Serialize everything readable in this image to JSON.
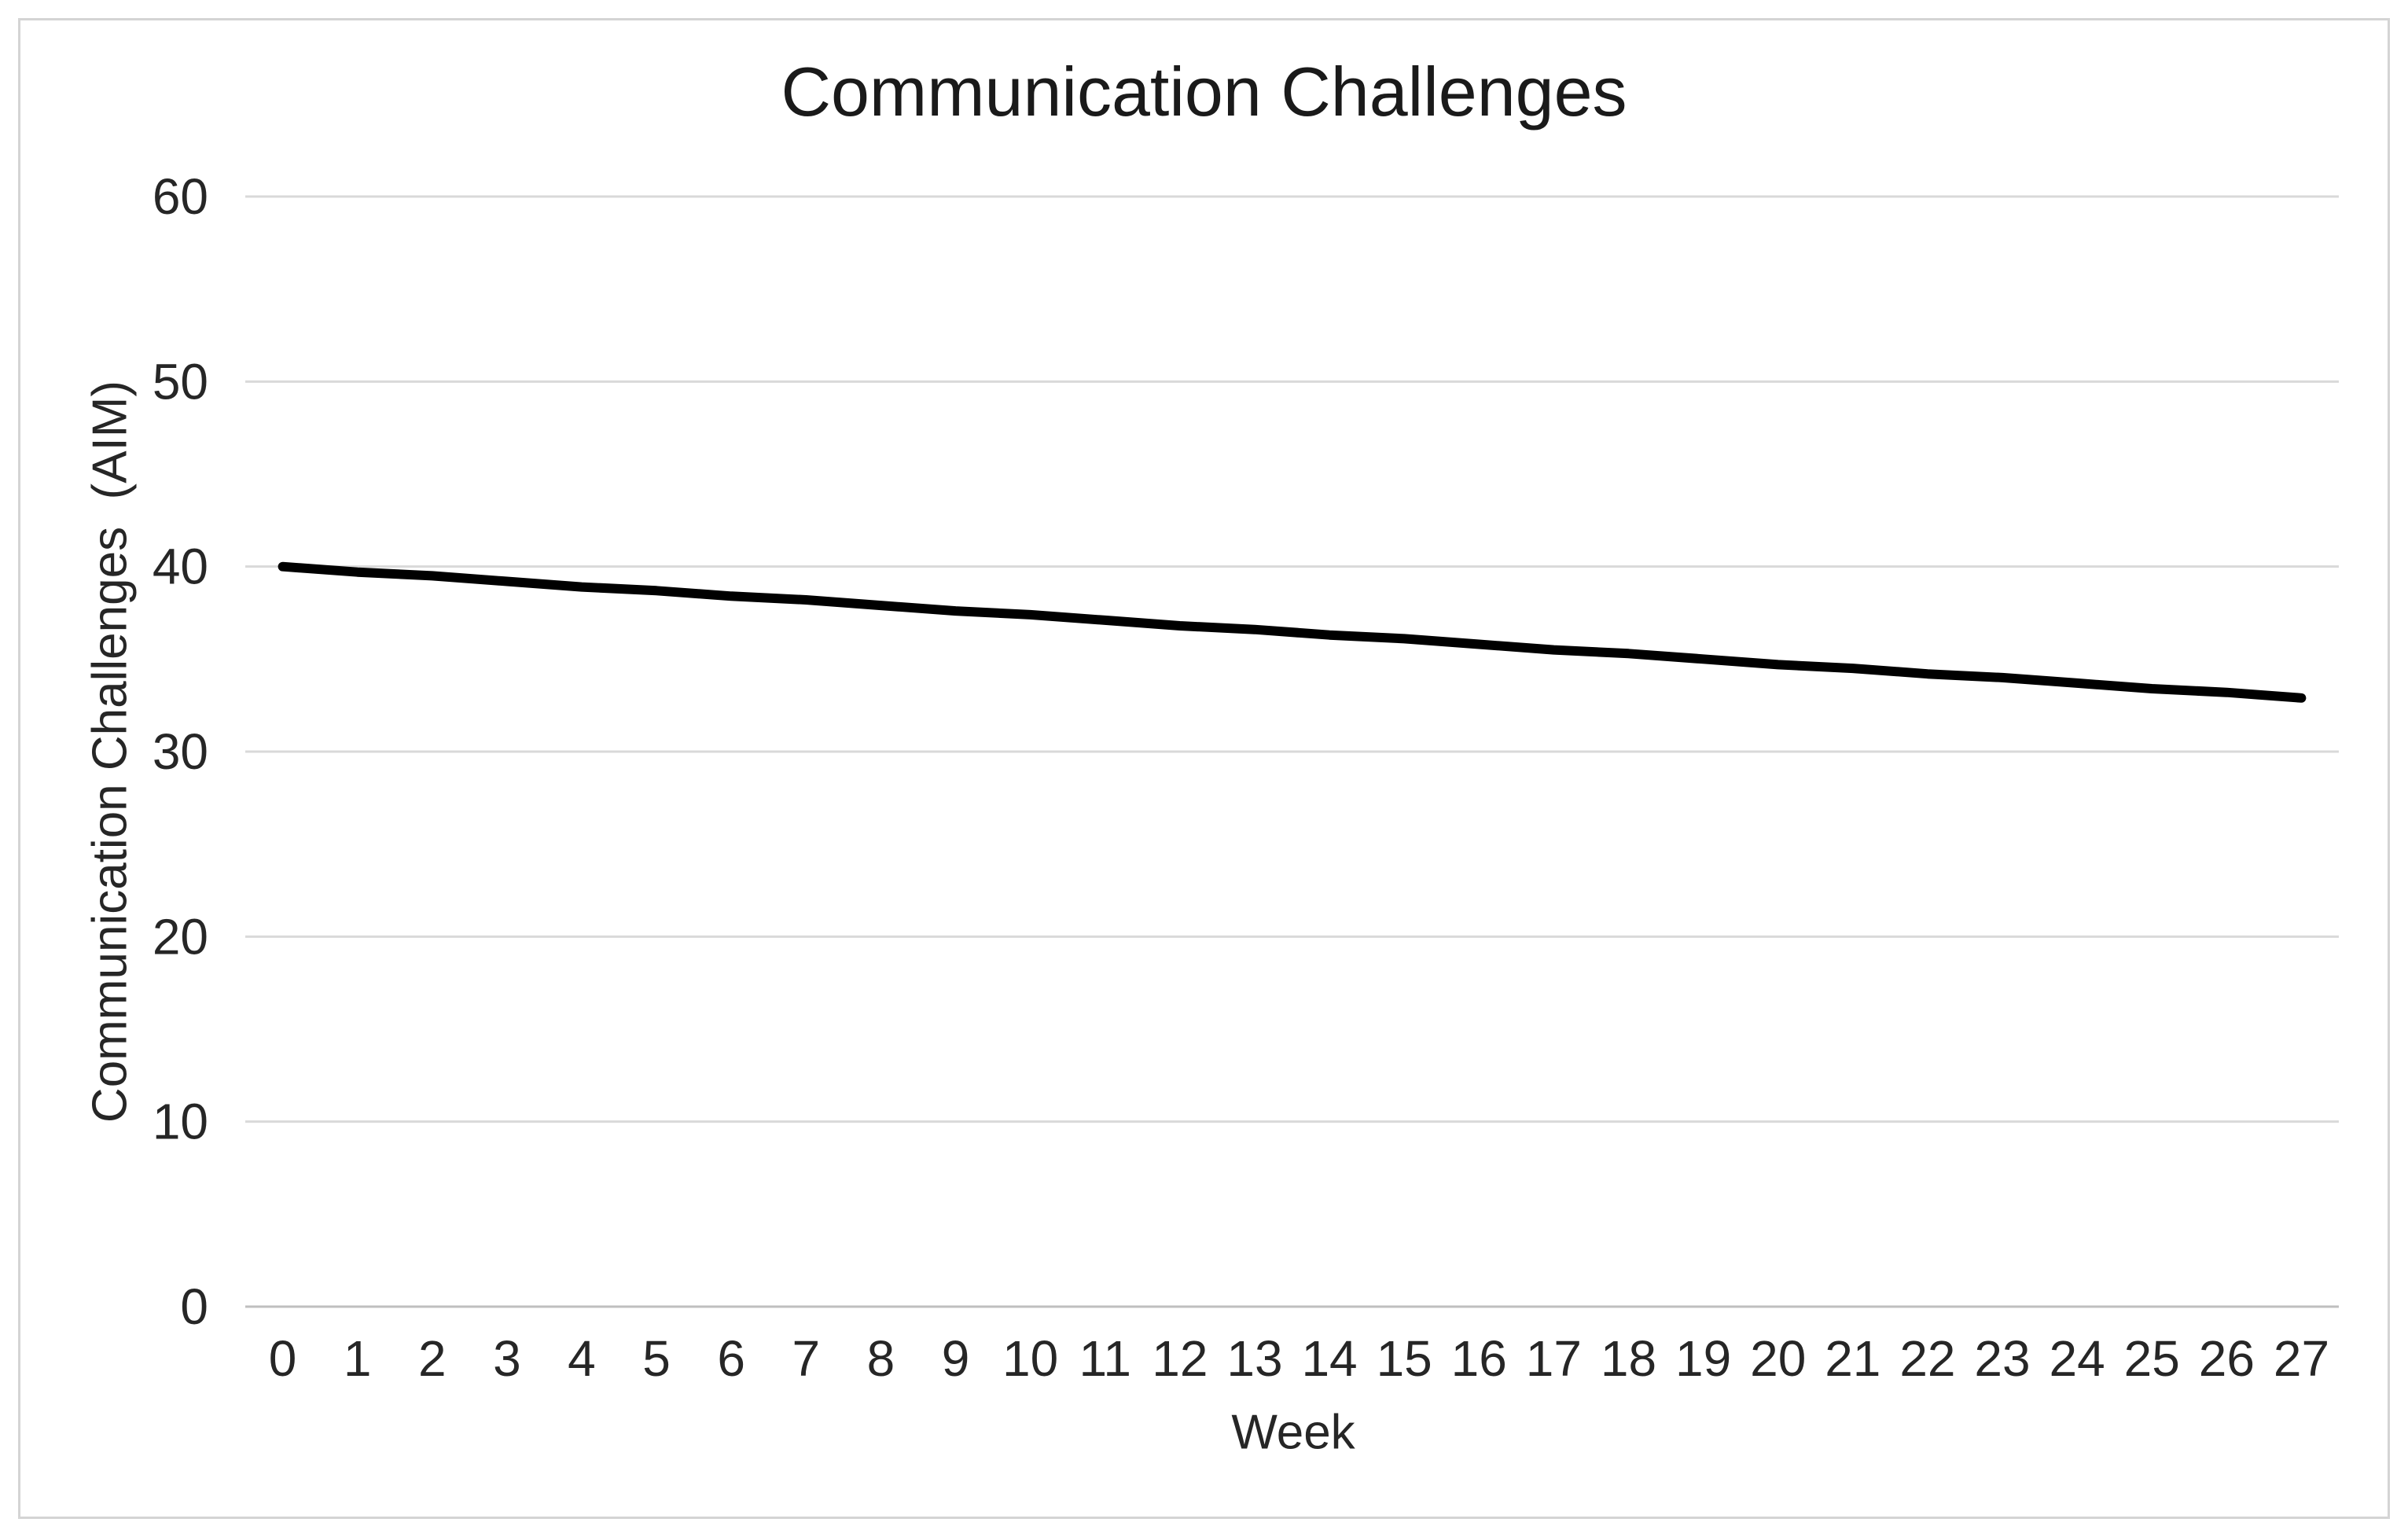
{
  "chart_data": {
    "type": "line",
    "title": "Communication Challenges",
    "xlabel": "Week",
    "ylabel": "Communication Challenges  (AIM)",
    "categories": [
      "0",
      "1",
      "2",
      "3",
      "4",
      "5",
      "6",
      "7",
      "8",
      "9",
      "10",
      "11",
      "12",
      "13",
      "14",
      "15",
      "16",
      "17",
      "18",
      "19",
      "20",
      "21",
      "22",
      "23",
      "24",
      "25",
      "26",
      "27"
    ],
    "series": [
      {
        "name": "Communication Challenges (AIM)",
        "color": "#000000",
        "values": [
          40.0,
          39.7,
          39.5,
          39.2,
          38.9,
          38.7,
          38.4,
          38.2,
          37.9,
          37.6,
          37.4,
          37.1,
          36.8,
          36.6,
          36.3,
          36.1,
          35.8,
          35.5,
          35.3,
          35.0,
          34.7,
          34.5,
          34.2,
          34.0,
          33.7,
          33.4,
          33.2,
          32.9
        ]
      }
    ],
    "ylim": [
      0,
      60
    ],
    "yticks": [
      0,
      10,
      20,
      30,
      40,
      50,
      60
    ],
    "grid": "horizontal-only",
    "legend": "none",
    "markers": "none",
    "colors": {
      "line": "#000000",
      "gridline": "#d9d9d9",
      "axis_line": "#bfbfbf",
      "tick_text": "#262626",
      "title_text": "#1a1a1a",
      "frame_border": "#d4d4d4",
      "background": "#ffffff"
    }
  }
}
